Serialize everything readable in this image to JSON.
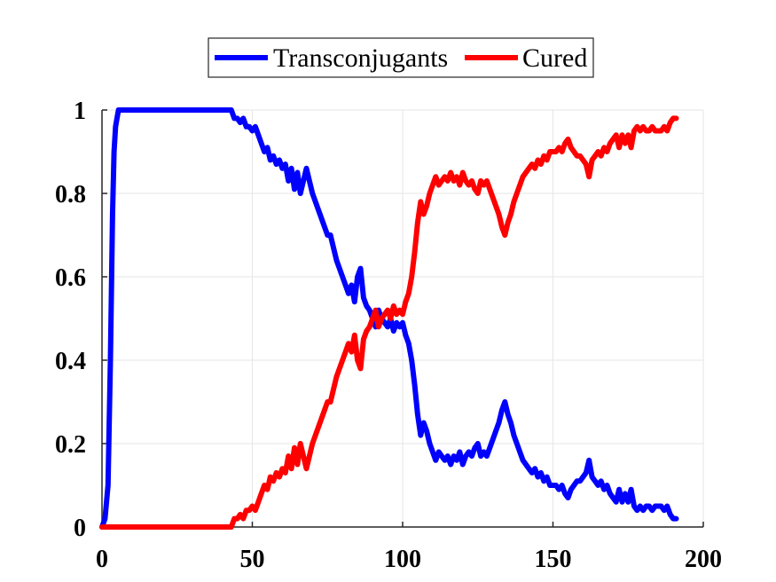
{
  "chart_data": {
    "type": "line",
    "title": "",
    "xlabel": "",
    "ylabel": "",
    "xlim": [
      0,
      200
    ],
    "ylim": [
      0,
      1
    ],
    "x_ticks": [
      "0",
      "50",
      "100",
      "150",
      "200"
    ],
    "y_ticks": [
      "0",
      "0.2",
      "0.4",
      "0.6",
      "0.8",
      "1"
    ],
    "grid": true,
    "legend_position": "top-center",
    "series": [
      {
        "name": "Transconjugants",
        "color": "#0000ff",
        "points": [
          [
            0,
            0
          ],
          [
            1,
            0.02
          ],
          [
            2,
            0.1
          ],
          [
            2.8,
            0.4
          ],
          [
            3.5,
            0.75
          ],
          [
            4,
            0.9
          ],
          [
            4.5,
            0.96
          ],
          [
            5,
            0.98
          ],
          [
            5.5,
            1
          ],
          [
            10,
            1
          ],
          [
            20,
            1
          ],
          [
            30,
            1
          ],
          [
            40,
            1
          ],
          [
            43,
            1
          ],
          [
            44,
            0.98
          ],
          [
            45,
            0.98
          ],
          [
            46,
            0.97
          ],
          [
            47,
            0.98
          ],
          [
            48,
            0.96
          ],
          [
            49,
            0.96
          ],
          [
            50,
            0.95
          ],
          [
            51,
            0.96
          ],
          [
            52,
            0.94
          ],
          [
            53,
            0.92
          ],
          [
            54,
            0.9
          ],
          [
            55,
            0.91
          ],
          [
            56,
            0.88
          ],
          [
            57,
            0.89
          ],
          [
            58,
            0.87
          ],
          [
            59,
            0.88
          ],
          [
            60,
            0.86
          ],
          [
            61,
            0.87
          ],
          [
            62,
            0.83
          ],
          [
            63,
            0.86
          ],
          [
            64,
            0.81
          ],
          [
            65,
            0.85
          ],
          [
            66,
            0.8
          ],
          [
            67,
            0.83
          ],
          [
            68,
            0.86
          ],
          [
            69,
            0.83
          ],
          [
            70,
            0.8
          ],
          [
            71,
            0.78
          ],
          [
            72,
            0.76
          ],
          [
            73,
            0.74
          ],
          [
            74,
            0.72
          ],
          [
            75,
            0.7
          ],
          [
            76,
            0.7
          ],
          [
            77,
            0.67
          ],
          [
            78,
            0.64
          ],
          [
            79,
            0.62
          ],
          [
            80,
            0.6
          ],
          [
            81,
            0.58
          ],
          [
            82,
            0.56
          ],
          [
            83,
            0.58
          ],
          [
            84,
            0.54
          ],
          [
            85,
            0.6
          ],
          [
            86,
            0.62
          ],
          [
            87,
            0.55
          ],
          [
            88,
            0.53
          ],
          [
            89,
            0.52
          ],
          [
            90,
            0.5
          ],
          [
            91,
            0.48
          ],
          [
            92,
            0.52
          ],
          [
            93,
            0.5
          ],
          [
            94,
            0.49
          ],
          [
            95,
            0.48
          ],
          [
            96,
            0.5
          ],
          [
            97,
            0.47
          ],
          [
            98,
            0.49
          ],
          [
            99,
            0.48
          ],
          [
            100,
            0.49
          ],
          [
            101,
            0.46
          ],
          [
            102,
            0.44
          ],
          [
            103,
            0.4
          ],
          [
            104,
            0.34
          ],
          [
            105,
            0.27
          ],
          [
            106,
            0.22
          ],
          [
            107,
            0.25
          ],
          [
            108,
            0.23
          ],
          [
            109,
            0.2
          ],
          [
            110,
            0.18
          ],
          [
            111,
            0.16
          ],
          [
            112,
            0.18
          ],
          [
            113,
            0.17
          ],
          [
            114,
            0.16
          ],
          [
            115,
            0.17
          ],
          [
            116,
            0.15
          ],
          [
            117,
            0.17
          ],
          [
            118,
            0.16
          ],
          [
            119,
            0.18
          ],
          [
            120,
            0.15
          ],
          [
            121,
            0.17
          ],
          [
            122,
            0.18
          ],
          [
            123,
            0.17
          ],
          [
            124,
            0.19
          ],
          [
            125,
            0.2
          ],
          [
            126,
            0.17
          ],
          [
            127,
            0.18
          ],
          [
            128,
            0.17
          ],
          [
            129,
            0.19
          ],
          [
            130,
            0.21
          ],
          [
            131,
            0.23
          ],
          [
            132,
            0.25
          ],
          [
            133,
            0.28
          ],
          [
            134,
            0.3
          ],
          [
            135,
            0.27
          ],
          [
            136,
            0.25
          ],
          [
            137,
            0.22
          ],
          [
            138,
            0.2
          ],
          [
            139,
            0.18
          ],
          [
            140,
            0.16
          ],
          [
            141,
            0.15
          ],
          [
            142,
            0.14
          ],
          [
            143,
            0.13
          ],
          [
            144,
            0.14
          ],
          [
            145,
            0.12
          ],
          [
            146,
            0.13
          ],
          [
            147,
            0.11
          ],
          [
            148,
            0.12
          ],
          [
            149,
            0.1
          ],
          [
            150,
            0.1
          ],
          [
            151,
            0.1
          ],
          [
            152,
            0.09
          ],
          [
            153,
            0.1
          ],
          [
            154,
            0.08
          ],
          [
            155,
            0.07
          ],
          [
            156,
            0.09
          ],
          [
            157,
            0.1
          ],
          [
            158,
            0.11
          ],
          [
            159,
            0.11
          ],
          [
            160,
            0.12
          ],
          [
            161,
            0.13
          ],
          [
            162,
            0.16
          ],
          [
            163,
            0.12
          ],
          [
            164,
            0.11
          ],
          [
            165,
            0.1
          ],
          [
            166,
            0.11
          ],
          [
            167,
            0.09
          ],
          [
            168,
            0.1
          ],
          [
            169,
            0.08
          ],
          [
            170,
            0.07
          ],
          [
            171,
            0.06
          ],
          [
            172,
            0.09
          ],
          [
            173,
            0.06
          ],
          [
            174,
            0.08
          ],
          [
            175,
            0.06
          ],
          [
            176,
            0.09
          ],
          [
            177,
            0.05
          ],
          [
            178,
            0.04
          ],
          [
            179,
            0.05
          ],
          [
            180,
            0.04
          ],
          [
            181,
            0.05
          ],
          [
            182,
            0.05
          ],
          [
            183,
            0.04
          ],
          [
            184,
            0.05
          ],
          [
            185,
            0.05
          ],
          [
            186,
            0.05
          ],
          [
            187,
            0.04
          ],
          [
            188,
            0.05
          ],
          [
            189,
            0.03
          ],
          [
            190,
            0.02
          ],
          [
            191,
            0.02
          ]
        ]
      },
      {
        "name": "Cured",
        "color": "#ff0000",
        "points": [
          [
            0,
            0
          ],
          [
            10,
            0
          ],
          [
            20,
            0
          ],
          [
            30,
            0
          ],
          [
            40,
            0
          ],
          [
            43,
            0
          ],
          [
            44,
            0.02
          ],
          [
            45,
            0.02
          ],
          [
            46,
            0.03
          ],
          [
            47,
            0.02
          ],
          [
            48,
            0.04
          ],
          [
            49,
            0.04
          ],
          [
            50,
            0.05
          ],
          [
            51,
            0.04
          ],
          [
            52,
            0.06
          ],
          [
            53,
            0.08
          ],
          [
            54,
            0.1
          ],
          [
            55,
            0.09
          ],
          [
            56,
            0.12
          ],
          [
            57,
            0.11
          ],
          [
            58,
            0.13
          ],
          [
            59,
            0.12
          ],
          [
            60,
            0.14
          ],
          [
            61,
            0.13
          ],
          [
            62,
            0.17
          ],
          [
            63,
            0.14
          ],
          [
            64,
            0.19
          ],
          [
            65,
            0.15
          ],
          [
            66,
            0.2
          ],
          [
            67,
            0.17
          ],
          [
            68,
            0.14
          ],
          [
            69,
            0.17
          ],
          [
            70,
            0.2
          ],
          [
            71,
            0.22
          ],
          [
            72,
            0.24
          ],
          [
            73,
            0.26
          ],
          [
            74,
            0.28
          ],
          [
            75,
            0.3
          ],
          [
            76,
            0.3
          ],
          [
            77,
            0.33
          ],
          [
            78,
            0.36
          ],
          [
            79,
            0.38
          ],
          [
            80,
            0.4
          ],
          [
            81,
            0.42
          ],
          [
            82,
            0.44
          ],
          [
            83,
            0.42
          ],
          [
            84,
            0.46
          ],
          [
            85,
            0.4
          ],
          [
            86,
            0.38
          ],
          [
            87,
            0.45
          ],
          [
            88,
            0.47
          ],
          [
            89,
            0.48
          ],
          [
            90,
            0.5
          ],
          [
            91,
            0.52
          ],
          [
            92,
            0.48
          ],
          [
            93,
            0.5
          ],
          [
            94,
            0.51
          ],
          [
            95,
            0.52
          ],
          [
            96,
            0.5
          ],
          [
            97,
            0.53
          ],
          [
            98,
            0.51
          ],
          [
            99,
            0.52
          ],
          [
            100,
            0.51
          ],
          [
            101,
            0.54
          ],
          [
            102,
            0.56
          ],
          [
            103,
            0.6
          ],
          [
            104,
            0.66
          ],
          [
            105,
            0.73
          ],
          [
            106,
            0.78
          ],
          [
            107,
            0.75
          ],
          [
            108,
            0.77
          ],
          [
            109,
            0.8
          ],
          [
            110,
            0.82
          ],
          [
            111,
            0.84
          ],
          [
            112,
            0.82
          ],
          [
            113,
            0.83
          ],
          [
            114,
            0.84
          ],
          [
            115,
            0.83
          ],
          [
            116,
            0.85
          ],
          [
            117,
            0.83
          ],
          [
            118,
            0.84
          ],
          [
            119,
            0.82
          ],
          [
            120,
            0.85
          ],
          [
            121,
            0.83
          ],
          [
            122,
            0.82
          ],
          [
            123,
            0.83
          ],
          [
            124,
            0.81
          ],
          [
            125,
            0.8
          ],
          [
            126,
            0.83
          ],
          [
            127,
            0.82
          ],
          [
            128,
            0.83
          ],
          [
            129,
            0.81
          ],
          [
            130,
            0.79
          ],
          [
            131,
            0.77
          ],
          [
            132,
            0.75
          ],
          [
            133,
            0.72
          ],
          [
            134,
            0.7
          ],
          [
            135,
            0.73
          ],
          [
            136,
            0.75
          ],
          [
            137,
            0.78
          ],
          [
            138,
            0.8
          ],
          [
            139,
            0.82
          ],
          [
            140,
            0.84
          ],
          [
            141,
            0.85
          ],
          [
            142,
            0.86
          ],
          [
            143,
            0.87
          ],
          [
            144,
            0.86
          ],
          [
            145,
            0.88
          ],
          [
            146,
            0.87
          ],
          [
            147,
            0.89
          ],
          [
            148,
            0.88
          ],
          [
            149,
            0.9
          ],
          [
            150,
            0.9
          ],
          [
            151,
            0.9
          ],
          [
            152,
            0.91
          ],
          [
            153,
            0.9
          ],
          [
            154,
            0.92
          ],
          [
            155,
            0.93
          ],
          [
            156,
            0.91
          ],
          [
            157,
            0.9
          ],
          [
            158,
            0.89
          ],
          [
            159,
            0.89
          ],
          [
            160,
            0.88
          ],
          [
            161,
            0.87
          ],
          [
            162,
            0.84
          ],
          [
            163,
            0.88
          ],
          [
            164,
            0.89
          ],
          [
            165,
            0.9
          ],
          [
            166,
            0.89
          ],
          [
            167,
            0.91
          ],
          [
            168,
            0.9
          ],
          [
            169,
            0.92
          ],
          [
            170,
            0.93
          ],
          [
            171,
            0.94
          ],
          [
            172,
            0.91
          ],
          [
            173,
            0.94
          ],
          [
            174,
            0.92
          ],
          [
            175,
            0.94
          ],
          [
            176,
            0.91
          ],
          [
            177,
            0.95
          ],
          [
            178,
            0.96
          ],
          [
            179,
            0.95
          ],
          [
            180,
            0.96
          ],
          [
            181,
            0.95
          ],
          [
            182,
            0.95
          ],
          [
            183,
            0.96
          ],
          [
            184,
            0.95
          ],
          [
            185,
            0.95
          ],
          [
            186,
            0.95
          ],
          [
            187,
            0.96
          ],
          [
            188,
            0.95
          ],
          [
            189,
            0.97
          ],
          [
            190,
            0.98
          ],
          [
            191,
            0.98
          ]
        ]
      }
    ]
  }
}
